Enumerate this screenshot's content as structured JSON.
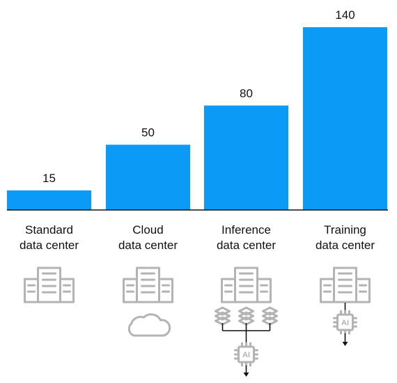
{
  "chart_data": {
    "type": "bar",
    "categories": [
      [
        "Standard",
        "data center"
      ],
      [
        "Cloud",
        "data center"
      ],
      [
        "Inference",
        "data center"
      ],
      [
        "Training",
        "data center"
      ]
    ],
    "values": [
      15,
      50,
      80,
      140
    ],
    "data_labels": [
      "15",
      "50",
      "80",
      "140"
    ],
    "ylim": [
      0,
      140
    ],
    "grid": false,
    "legend": "none",
    "bar_color": "#0b9bf7",
    "baseline_color": "#111111"
  },
  "icons": [
    [
      "building-icon"
    ],
    [
      "building-icon",
      "cloud-icon"
    ],
    [
      "building-icon",
      "layers-icon",
      "ai-chip-icon"
    ],
    [
      "building-icon",
      "ai-chip-icon"
    ]
  ],
  "ai_chip_label": "AI"
}
